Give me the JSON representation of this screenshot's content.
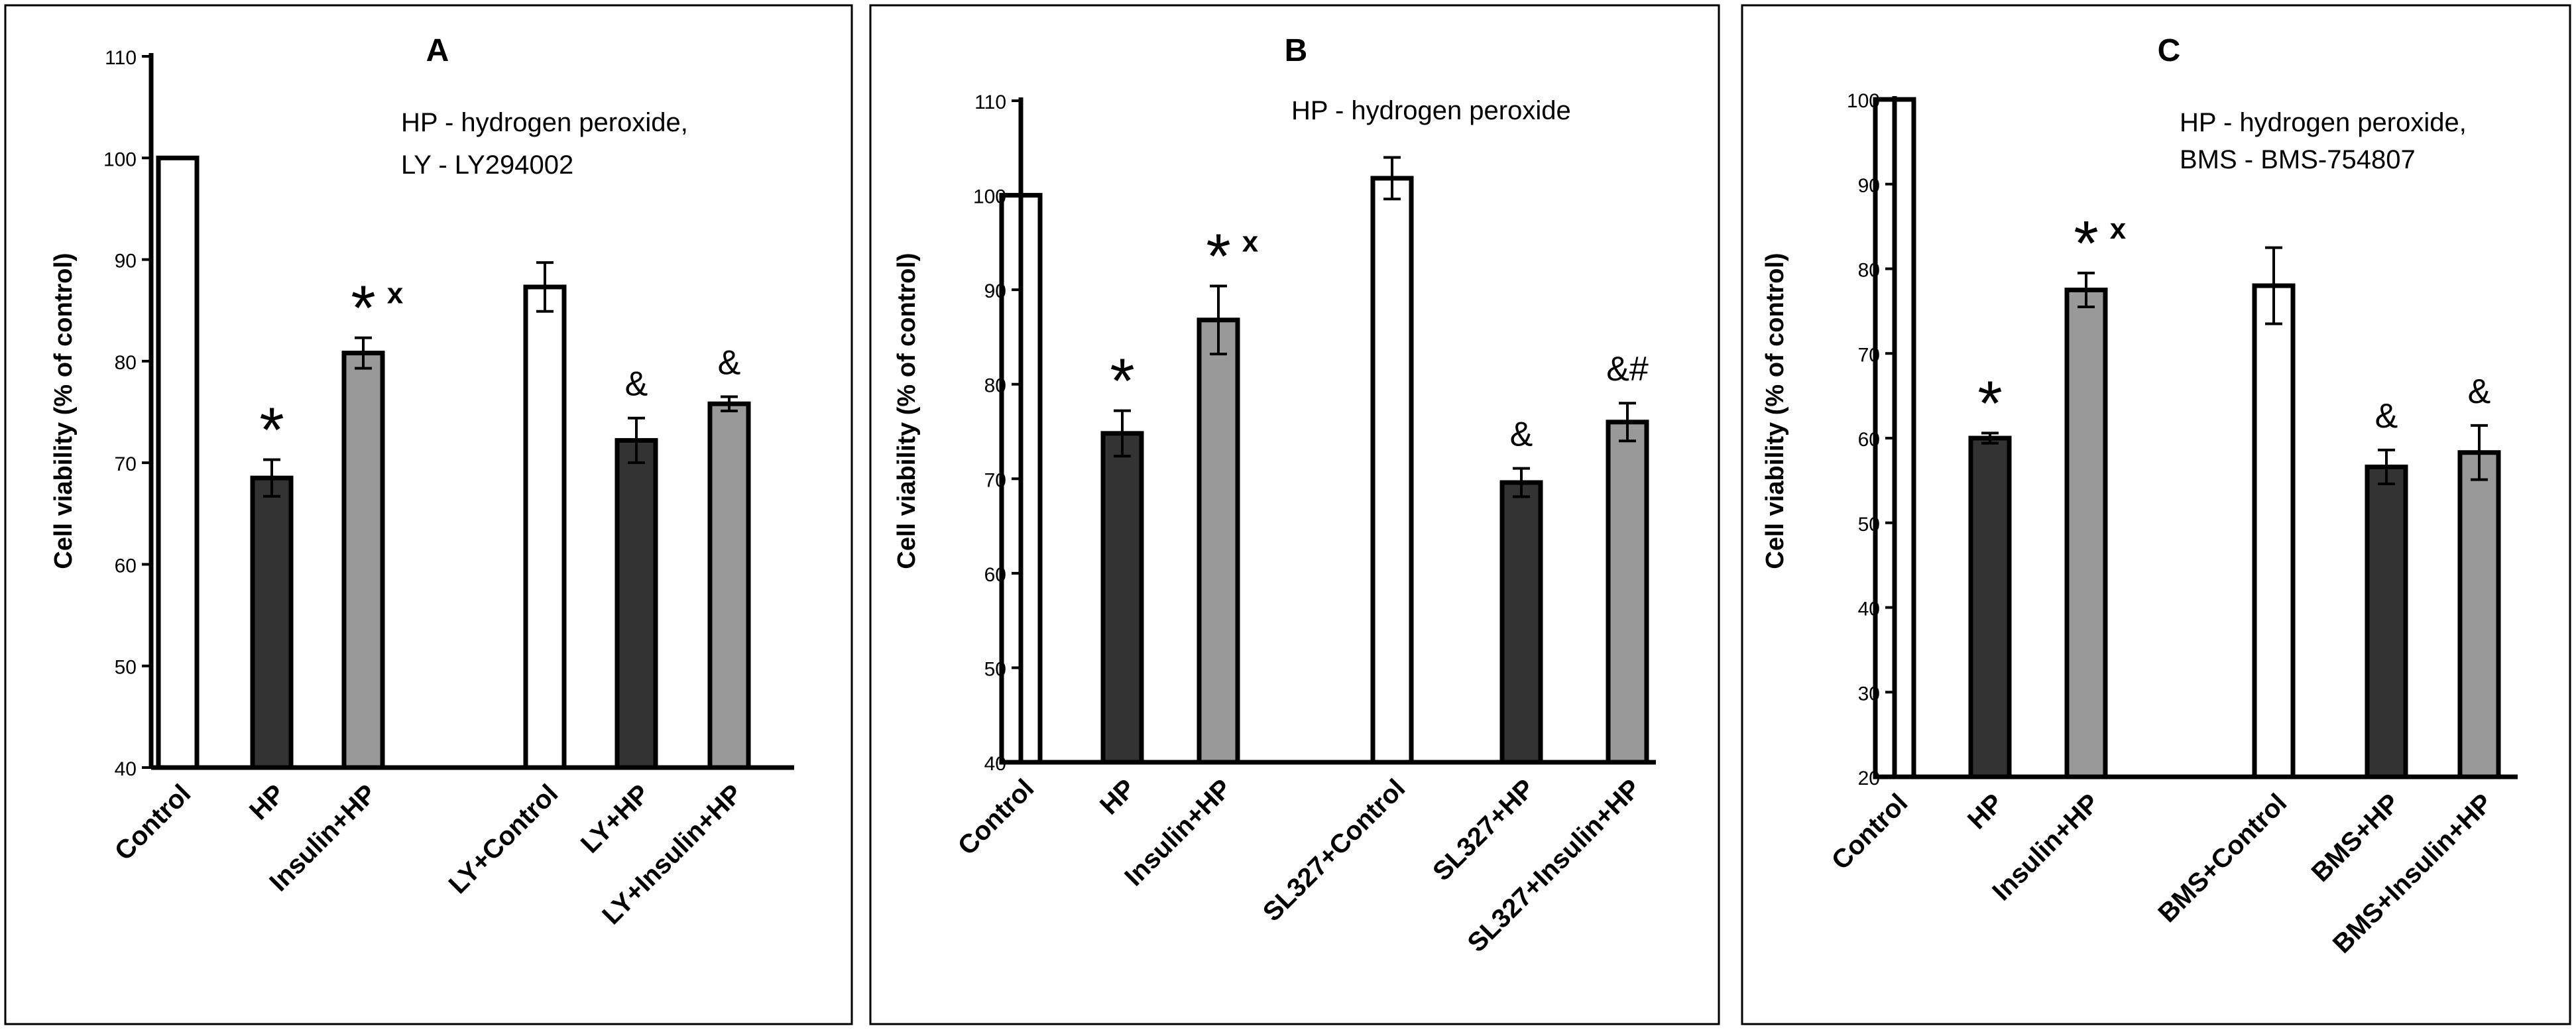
{
  "chart_data": [
    {
      "type": "bar",
      "title": "A",
      "note_lines": [
        "HP - hydrogen peroxide,",
        "LY - LY294002"
      ],
      "ylabel": "Cell  viability  (% of control)",
      "xlabel": "",
      "ylim": [
        40,
        110
      ],
      "yticks": [
        40,
        50,
        60,
        70,
        80,
        90,
        100,
        110
      ],
      "grid": false,
      "legend": "none",
      "categories": [
        "Control",
        "HP",
        "Insulin+HP",
        "LY+Control",
        "LY+HP",
        "LY+Insulin+HP"
      ],
      "values": [
        100,
        68.5,
        80.8,
        87.3,
        72.2,
        75.8
      ],
      "errors": [
        0,
        1.8,
        1.5,
        2.4,
        2.2,
        0.7
      ],
      "fills": [
        "white",
        "dark",
        "gray",
        "white",
        "dark",
        "gray"
      ],
      "annotations": [
        {
          "index": 1,
          "symbol": "*",
          "subscript": ""
        },
        {
          "index": 2,
          "symbol": "*",
          "subscript": "x"
        },
        {
          "index": 4,
          "symbol": "&",
          "subscript": ""
        },
        {
          "index": 5,
          "symbol": "&",
          "subscript": ""
        }
      ]
    },
    {
      "type": "bar",
      "title": "B",
      "note_lines": [
        "HP - hydrogen peroxide"
      ],
      "ylabel": "Cell  viability  (% of control)",
      "xlabel": "",
      "ylim": [
        40,
        110
      ],
      "yticks": [
        40,
        50,
        60,
        70,
        80,
        90,
        100,
        110
      ],
      "grid": false,
      "legend": "none",
      "categories": [
        "Control",
        "HP",
        "Insulin+HP",
        "SL327+Control",
        "SL327+HP",
        "SL327+Insulin+HP"
      ],
      "values": [
        100,
        74.8,
        86.8,
        101.8,
        69.6,
        76.0
      ],
      "errors": [
        0,
        2.4,
        3.6,
        2.2,
        1.5,
        2.0
      ],
      "fills": [
        "white",
        "dark",
        "gray",
        "white",
        "dark",
        "gray"
      ],
      "annotations": [
        {
          "index": 1,
          "symbol": "*",
          "subscript": ""
        },
        {
          "index": 2,
          "symbol": "*",
          "subscript": "x"
        },
        {
          "index": 4,
          "symbol": "&",
          "subscript": ""
        },
        {
          "index": 5,
          "symbol": "&#",
          "subscript": ""
        }
      ]
    },
    {
      "type": "bar",
      "title": "C",
      "note_lines": [
        "HP - hydrogen peroxide,",
        "BMS - BMS-754807"
      ],
      "ylabel": "Cell  viability  (% of control)",
      "xlabel": "",
      "ylim": [
        20,
        100
      ],
      "yticks": [
        20,
        30,
        40,
        50,
        60,
        70,
        80,
        90,
        100
      ],
      "grid": false,
      "legend": "none",
      "categories": [
        "Control",
        "HP",
        "Insulin+HP",
        "BMS+Control",
        "BMS+HP",
        "BMS+Insulin+HP"
      ],
      "values": [
        100,
        60.0,
        77.5,
        78.0,
        56.6,
        58.3
      ],
      "errors": [
        0,
        0.6,
        2.0,
        4.5,
        2.0,
        3.2
      ],
      "fills": [
        "white",
        "dark",
        "gray",
        "white",
        "dark",
        "gray"
      ],
      "annotations": [
        {
          "index": 1,
          "symbol": "*",
          "subscript": ""
        },
        {
          "index": 2,
          "symbol": "*",
          "subscript": "x"
        },
        {
          "index": 4,
          "symbol": "&",
          "subscript": ""
        },
        {
          "index": 5,
          "symbol": "&",
          "subscript": ""
        }
      ]
    }
  ],
  "colors": {
    "white_bar": "#ffffff",
    "dark_bar": "#333333",
    "gray_bar": "#999999",
    "outline": "#000000"
  }
}
